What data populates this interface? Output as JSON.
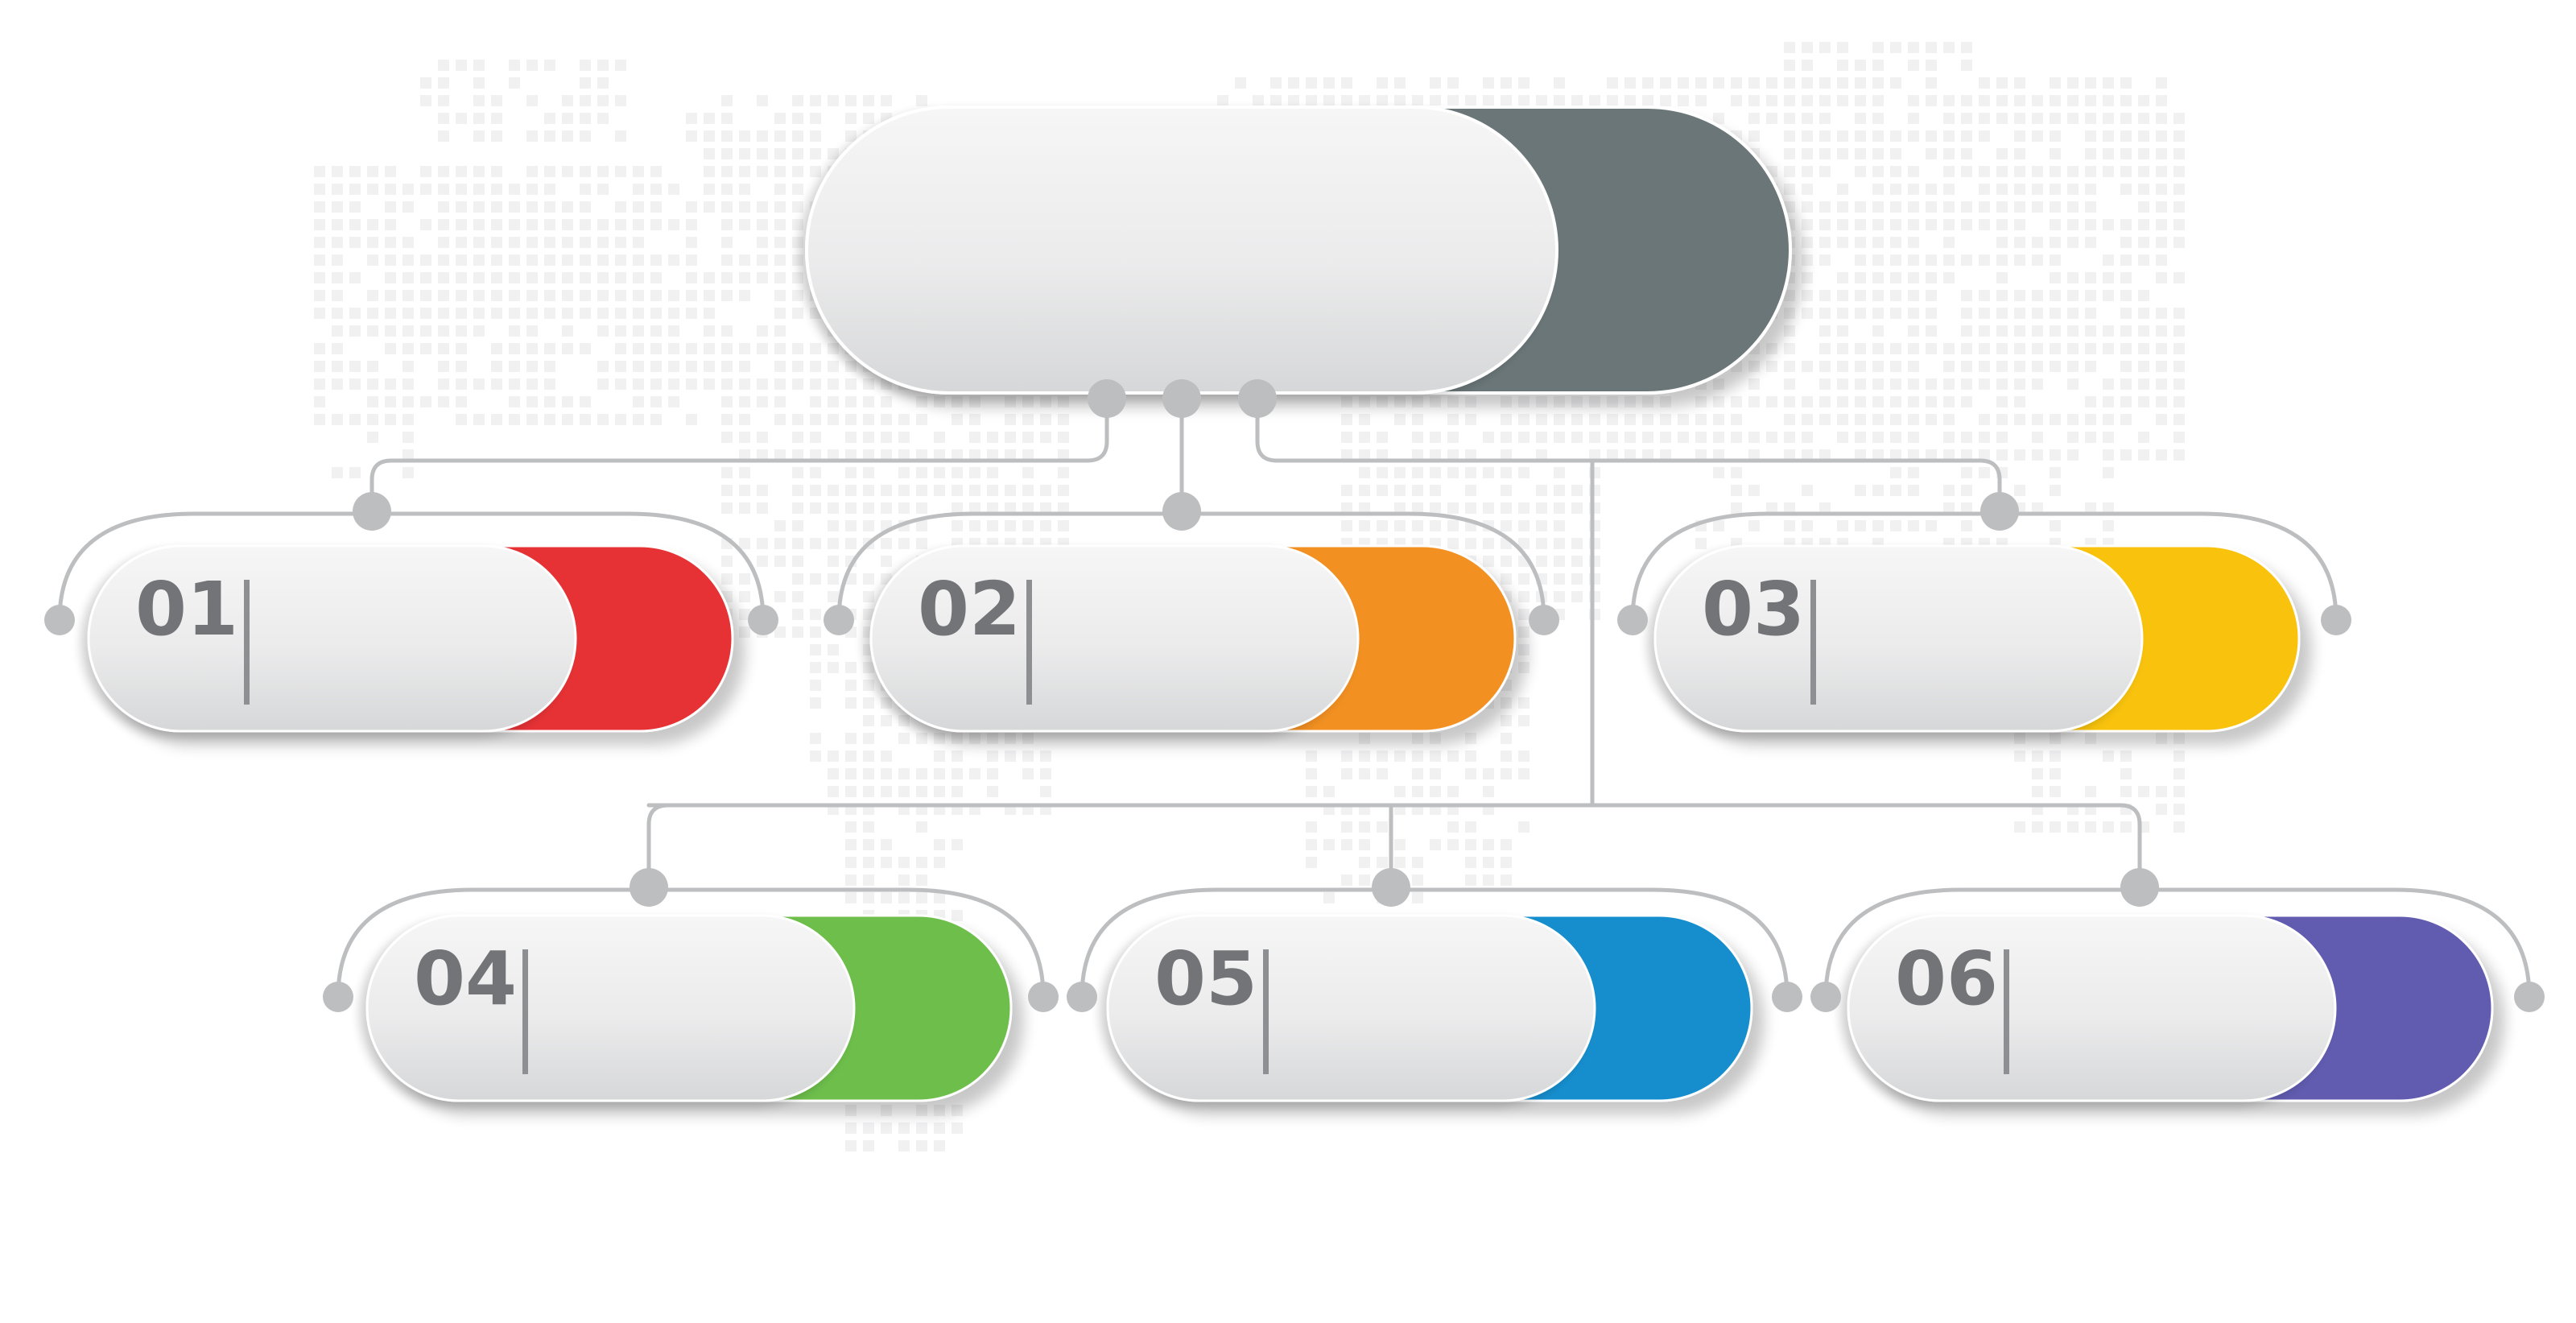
{
  "diagram": {
    "root": {
      "color": "#6B7678"
    },
    "nodes": [
      {
        "number": "01",
        "color": "#E63235"
      },
      {
        "number": "02",
        "color": "#F29022"
      },
      {
        "number": "03",
        "color": "#F8C20F"
      },
      {
        "number": "04",
        "color": "#6DBE4B"
      },
      {
        "number": "05",
        "color": "#168ECE"
      },
      {
        "number": "06",
        "color": "#625CB1"
      }
    ],
    "line_color": "#BDBEC0",
    "number_color": "#727477",
    "map_dot_color": "#F1F1F2"
  }
}
